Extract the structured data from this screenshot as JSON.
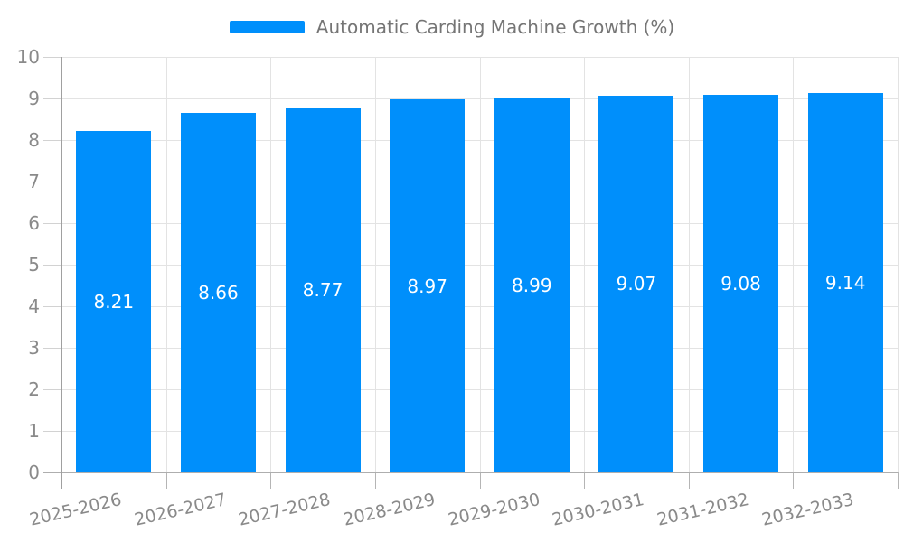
{
  "chart_data": {
    "type": "bar",
    "title": "Automatic Carding Machine Growth (%)",
    "categories": [
      "2025-2026",
      "2026-2027",
      "2027-2028",
      "2028-2029",
      "2029-2030",
      "2030-2031",
      "2031-2032",
      "2032-2033"
    ],
    "values": [
      8.21,
      8.66,
      8.77,
      8.97,
      8.99,
      9.07,
      9.08,
      9.14
    ],
    "value_labels": [
      "8.21",
      "8.66",
      "8.77",
      "8.97",
      "8.99",
      "9.07",
      "9.08",
      "9.14"
    ],
    "xlabel": "",
    "ylabel": "",
    "ylim": [
      0,
      10
    ],
    "y_ticks": [
      0,
      1,
      2,
      3,
      4,
      5,
      6,
      7,
      8,
      9,
      10
    ],
    "grid": true,
    "legend_position": "top",
    "colors": {
      "bar": "#008FFB",
      "value_label": "#ffffff",
      "axis_text": "#8a8a8a",
      "legend_text": "#757575",
      "gridline": "#e3e3e3"
    }
  }
}
